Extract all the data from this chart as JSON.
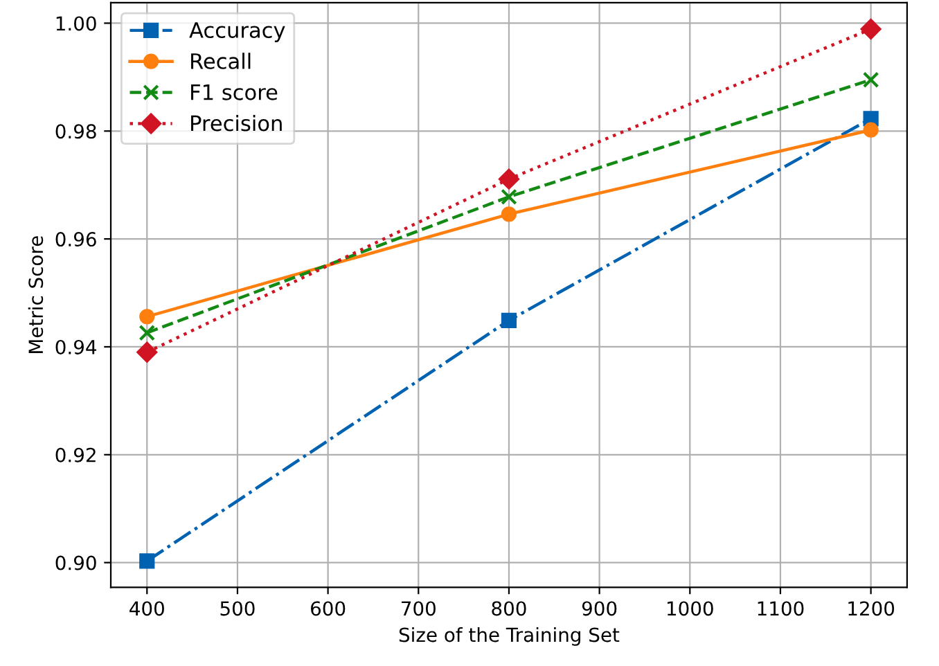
{
  "chart_data": {
    "type": "line",
    "xlabel": "Size of the Training Set",
    "ylabel": "Metric Score",
    "x": [
      400,
      800,
      1200
    ],
    "series": [
      {
        "name": "Accuracy",
        "color": "#0062b0",
        "values": [
          0.9003,
          0.9449,
          0.9823
        ],
        "marker": "square",
        "line_style": "dashdot"
      },
      {
        "name": "Recall",
        "color": "#ff7f0e",
        "values": [
          0.9456,
          0.9646,
          0.9802
        ],
        "marker": "circle",
        "line_style": "solid"
      },
      {
        "name": "F1 score",
        "color": "#138a13",
        "values": [
          0.9426,
          0.9678,
          0.9895
        ],
        "marker": "cross",
        "line_style": "dashed"
      },
      {
        "name": "Precision",
        "color": "#d01424",
        "values": [
          0.939,
          0.9711,
          0.9989
        ],
        "marker": "diamond",
        "line_style": "dotted"
      }
    ],
    "xlim": [
      360,
      1240
    ],
    "xticks": [
      400,
      500,
      600,
      700,
      800,
      900,
      1000,
      1100,
      1200
    ],
    "ylim": [
      0.8954,
      1.0038
    ],
    "yticks": [
      {
        "value": 0.9,
        "label": "0.90"
      },
      {
        "value": 0.92,
        "label": "0.92"
      },
      {
        "value": 0.94,
        "label": "0.94"
      },
      {
        "value": 0.96,
        "label": "0.96"
      },
      {
        "value": 0.98,
        "label": "0.98"
      },
      {
        "value": 1.0,
        "label": "1.00"
      }
    ],
    "grid": true,
    "legend": "top left"
  }
}
